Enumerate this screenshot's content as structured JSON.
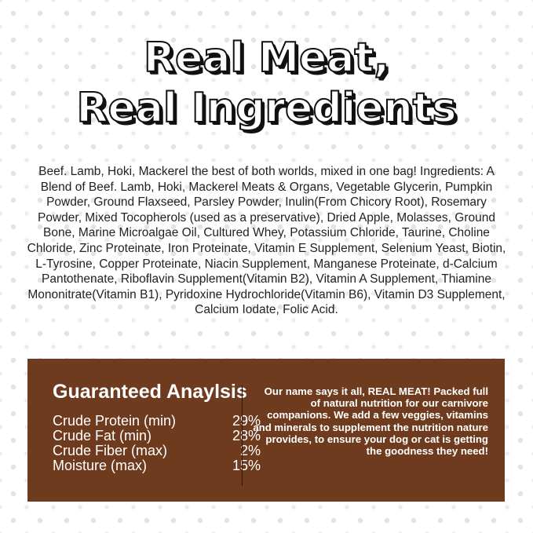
{
  "title": {
    "line1": "Real Meat,",
    "line2": "Real Ingredients"
  },
  "ingredients": "Beef. Lamb, Hoki, Mackerel the best of both worlds, mixed in one bag! Ingredients: A Blend of Beef. Lamb, Hoki, Mackerel Meats & Organs, Vegetable Glycerin, Pumpkin Powder, Ground Flaxseed, Parsley Powder, Inulin(From Chicory Root), Rosemary Powder, Mixed Tocopherols (used as a preservative), Dried Apple, Molasses, Ground Bone, Marine Microalgae Oil, Cultured Whey, Potassium Chloride, Taurine, Choline Chloride, Zinc Proteinate, Iron Proteinate, Vitamin E Supplement, Selenium Yeast, Biotin, L-Tyrosine, Copper Proteinate, Niacin Supplement, Manganese Proteinate, d-Calcium Pantothenate, Riboflavin Supplement(Vitamin B2), Vitamin A Supplement, Thiamine Mononitrate(Vitamin B1), Pyridoxine Hydrochloride(Vitamin B6), Vitamin D3 Supplement, Calcium Iodate, Folic Acid.",
  "analysis": {
    "title": "Guaranteed Anaylsis",
    "rows": [
      {
        "label": "Crude Protein (min)",
        "value": "29%"
      },
      {
        "label": "Crude Fat (min)",
        "value": "28%"
      },
      {
        "label": "Crude Fiber (max)",
        "value": "2%"
      },
      {
        "label": "Moisture (max)",
        "value": "15%"
      }
    ]
  },
  "blurb": "Our name says it all, REAL MEAT! Packed full of natural nutrition for our carnivore companions. We add a few veggies, vitamins and minerals to supplement the nutrition nature provides, to ensure your dog or cat is getting the goodness they need!",
  "colors": {
    "panel": "#6f3b1e",
    "text": "#222222"
  }
}
